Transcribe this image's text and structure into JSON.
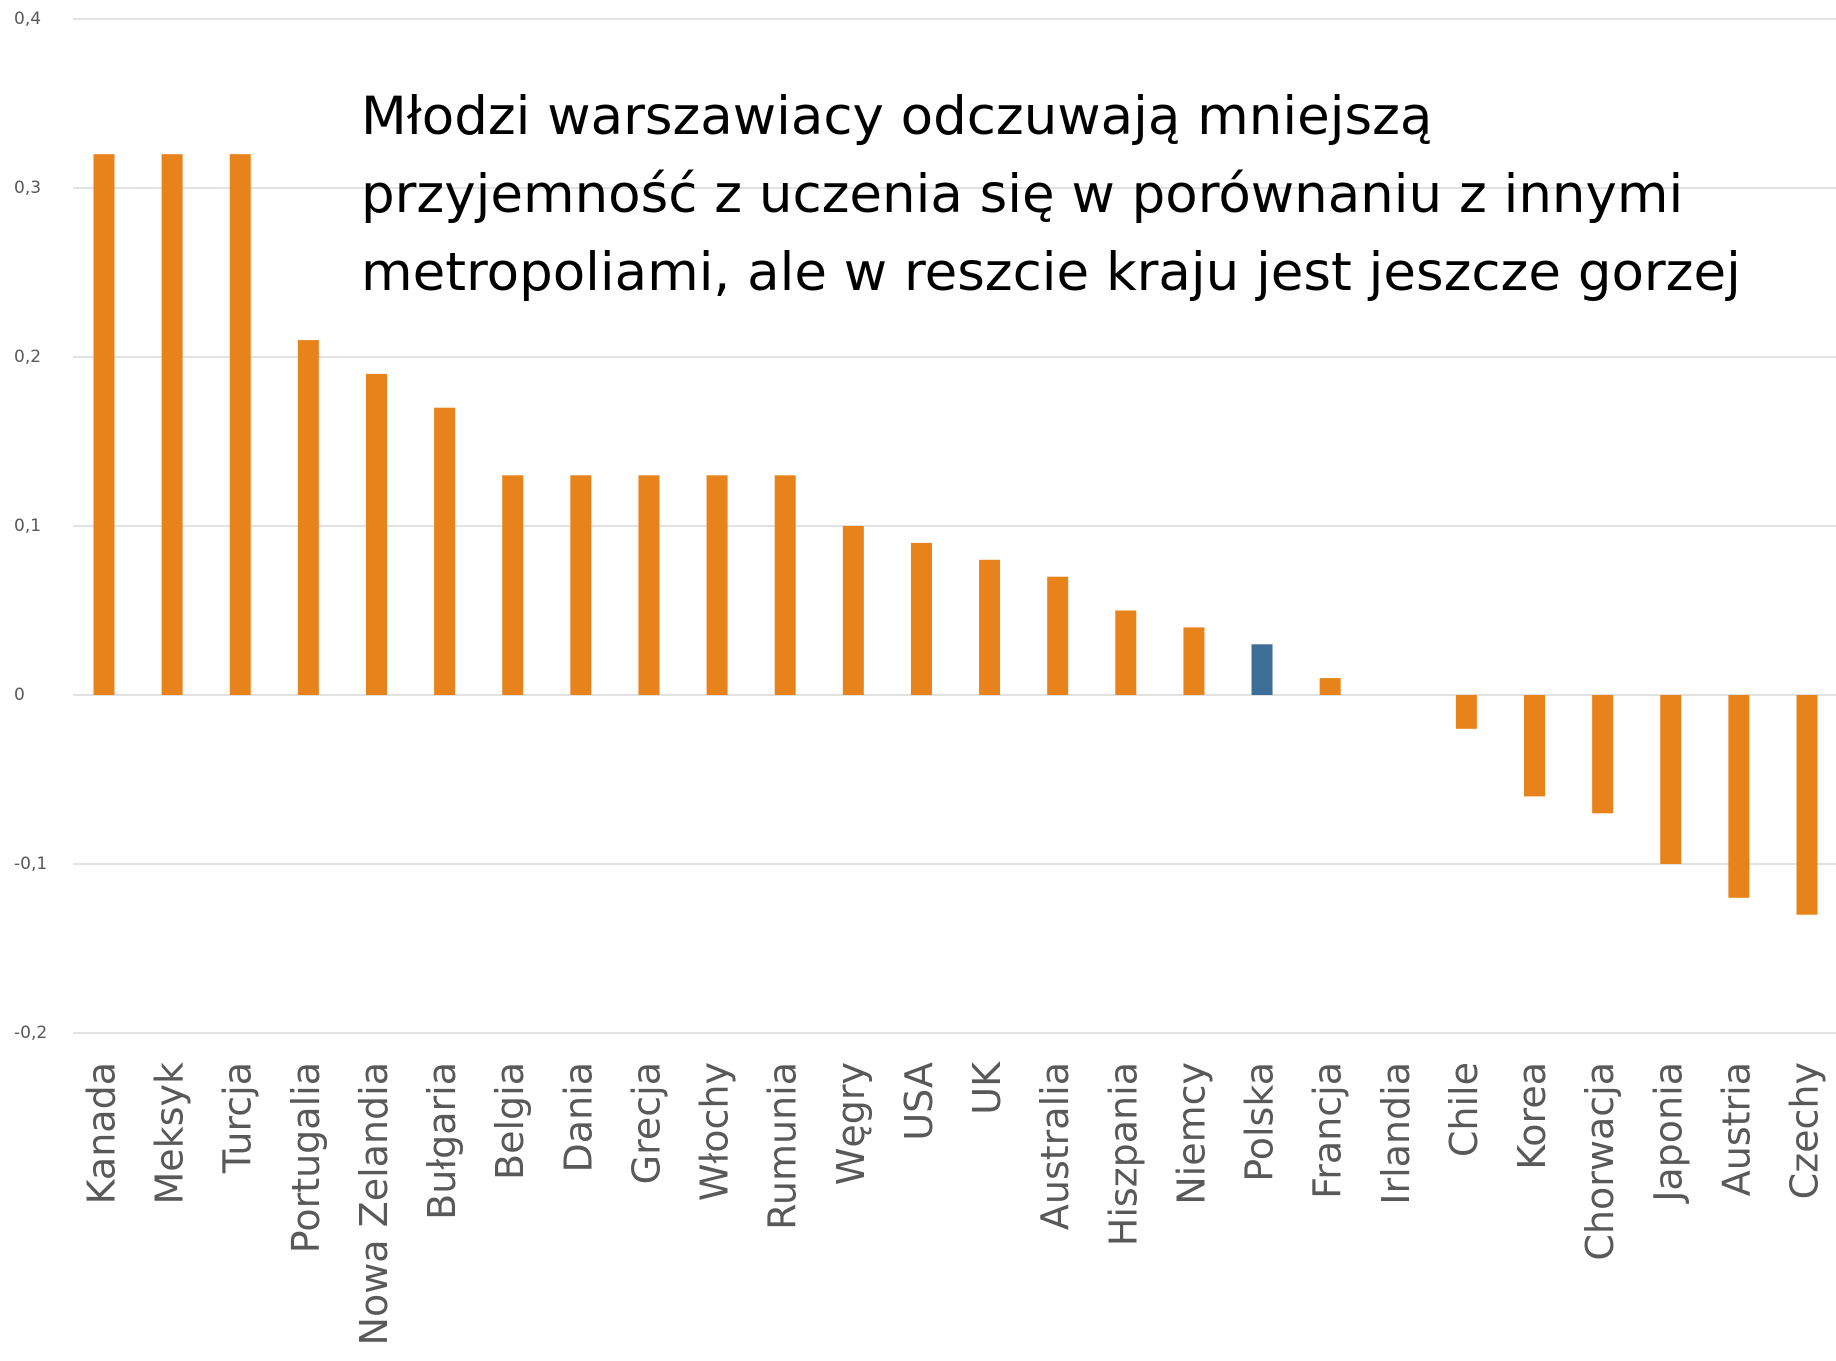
{
  "chart_data": {
    "type": "bar",
    "title": "Młodzi warszawiacy odczuwają mniejszą przyjemność z uczenia się w porównaniu z innymi metropoliami, ale w reszcie kraju jest jeszcze gorzej",
    "categories": [
      "Kanada",
      "Meksyk",
      "Turcja",
      "Portugalia",
      "Nowa Zelandia",
      "Bułgaria",
      "Belgia",
      "Dania",
      "Grecja",
      "Włochy",
      "Rumunia",
      "Węgry",
      "USA",
      "UK",
      "Australia",
      "Hiszpania",
      "Niemcy",
      "Polska",
      "Francja",
      "Irlandia",
      "Chile",
      "Korea",
      "Chorwacja",
      "Japonia",
      "Austria",
      "Czechy"
    ],
    "values": [
      0.32,
      0.32,
      0.32,
      0.21,
      0.19,
      0.17,
      0.13,
      0.13,
      0.13,
      0.13,
      0.13,
      0.1,
      0.09,
      0.08,
      0.07,
      0.05,
      0.04,
      0.03,
      0.01,
      0,
      -0.02,
      -0.06,
      -0.07,
      -0.1,
      -0.12,
      -0.13
    ],
    "colors": [
      "#e8821a",
      "#e8821a",
      "#e8821a",
      "#e8821a",
      "#e8821a",
      "#e8821a",
      "#e8821a",
      "#e8821a",
      "#e8821a",
      "#e8821a",
      "#e8821a",
      "#e8821a",
      "#e8821a",
      "#e8821a",
      "#e8821a",
      "#e8821a",
      "#e8821a",
      "#3c6e96",
      "#e8821a",
      "#e8821a",
      "#e8821a",
      "#e8821a",
      "#e8821a",
      "#e8821a",
      "#e8821a",
      "#e8821a"
    ],
    "ylim": [
      -0.2,
      0.4
    ],
    "yticks": [
      {
        "value": -0.2,
        "label": "-0,2"
      },
      {
        "value": -0.1,
        "label": "-0,1"
      },
      0,
      {
        "value": 0.1,
        "label": "0,1"
      },
      {
        "value": 0.2,
        "label": "0,2"
      },
      {
        "value": 0.3,
        "label": "0,3"
      },
      {
        "value": 0.4,
        "label": "0,4"
      }
    ],
    "grid": true
  }
}
